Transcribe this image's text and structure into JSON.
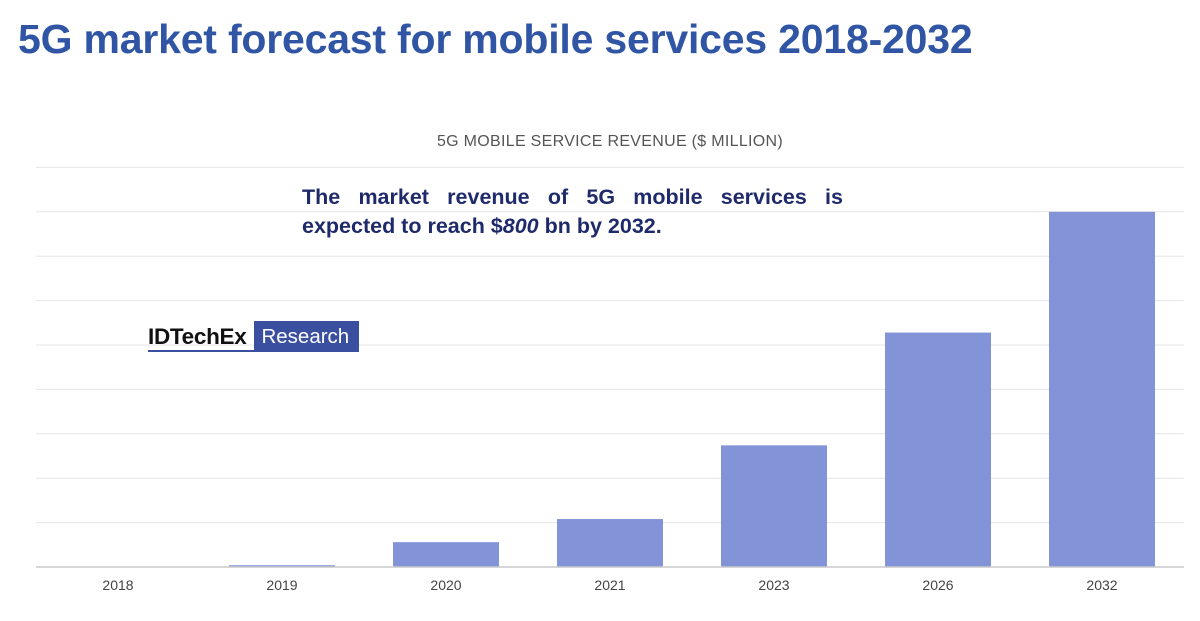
{
  "title": "5G market forecast for mobile services 2018-2032",
  "annotation": {
    "before": "The market revenue of 5G mobile services is expected to reach $",
    "emphasis": "800",
    "after": " bn by 2032."
  },
  "logo": {
    "name": "IDTechEx",
    "badge": "Research"
  },
  "colors": {
    "title": "#2f55a4",
    "bar": "#8393d8",
    "annotation": "#1f2a6b",
    "logo_box": "#3b4fa0"
  },
  "chart_data": {
    "type": "bar",
    "title": "5G MOBILE SERVICE REVENUE ($ MILLION)",
    "categories": [
      "2018",
      "2019",
      "2020",
      "2021",
      "2023",
      "2026",
      "2032"
    ],
    "values": [
      0,
      4000,
      56000,
      108000,
      274000,
      528000,
      800000
    ],
    "ylim": [
      0,
      900000
    ],
    "y_tick_labels_shown": false,
    "grid": true,
    "xlabel": "",
    "ylabel": ""
  }
}
